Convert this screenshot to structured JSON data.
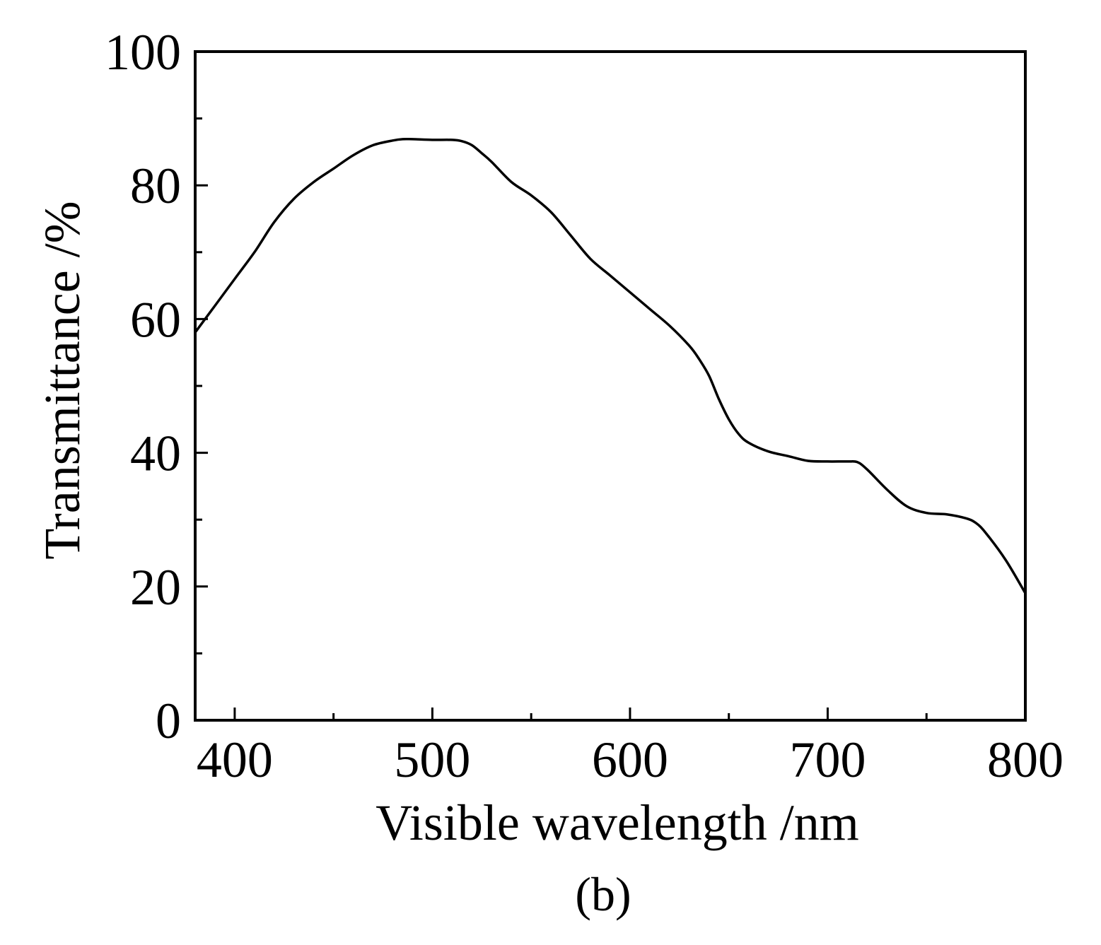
{
  "chart_data": {
    "type": "line",
    "title": "",
    "caption": "(b)",
    "xlabel": "Visible wavelength /nm",
    "ylabel": "Transmittance /%",
    "xlim": [
      380,
      800
    ],
    "ylim": [
      0,
      100
    ],
    "xticks": [
      400,
      500,
      600,
      700,
      800
    ],
    "yticks": [
      0,
      20,
      40,
      60,
      80,
      100
    ],
    "x_minor_step": 50,
    "y_minor_step": 10,
    "grid": false,
    "legend": "none",
    "line_color": "#000000",
    "series": [
      {
        "x": [
          380,
          390,
          400,
          410,
          420,
          430,
          440,
          450,
          460,
          470,
          480,
          485,
          490,
          500,
          510,
          515,
          520,
          525,
          530,
          540,
          550,
          560,
          570,
          580,
          590,
          600,
          610,
          620,
          630,
          635,
          640,
          645,
          650,
          655,
          660,
          670,
          680,
          690,
          700,
          710,
          715,
          720,
          730,
          740,
          750,
          760,
          770,
          775,
          780,
          790,
          800
        ],
        "values": [
          58,
          62,
          66,
          70,
          74.5,
          78,
          80.5,
          82.5,
          84.5,
          86,
          86.7,
          86.9,
          86.9,
          86.8,
          86.8,
          86.6,
          86,
          84.8,
          83.5,
          80.5,
          78.5,
          76,
          72.5,
          69,
          66.5,
          64,
          61.5,
          59,
          56,
          54,
          51.5,
          48,
          45,
          42.8,
          41.5,
          40.2,
          39.5,
          38.8,
          38.7,
          38.7,
          38.6,
          37.5,
          34.5,
          32,
          31,
          30.8,
          30.2,
          29.5,
          28,
          24,
          19
        ]
      }
    ]
  }
}
